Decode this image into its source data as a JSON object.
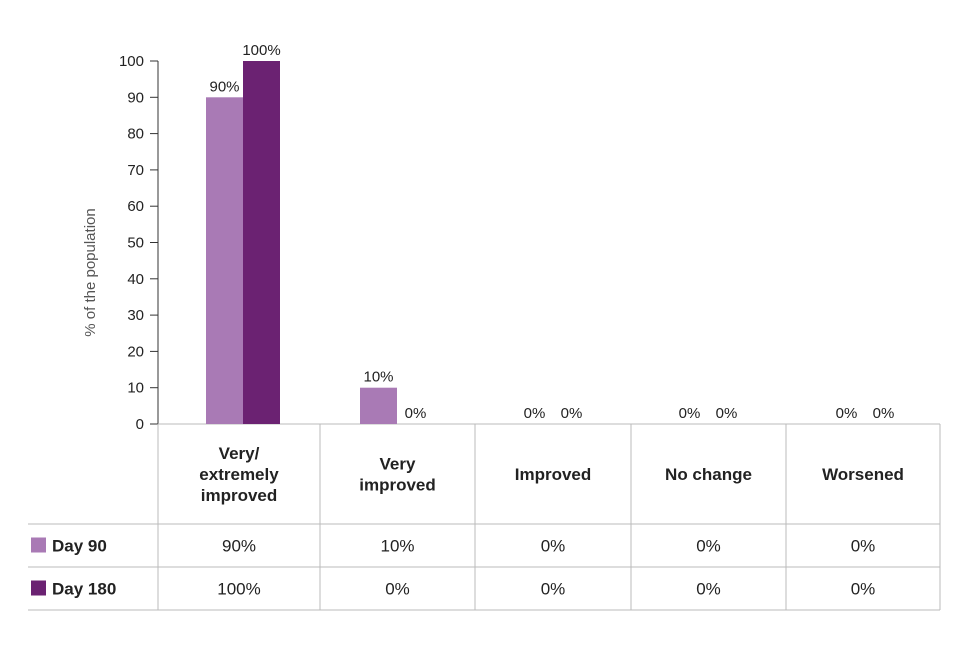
{
  "chart_data": {
    "type": "bar",
    "ylabel": "% of the population",
    "ylim": [
      0,
      100
    ],
    "yticks": [
      0,
      10,
      20,
      30,
      40,
      50,
      60,
      70,
      80,
      90,
      100
    ],
    "categories": [
      [
        "Very/",
        "extremely",
        "improved"
      ],
      [
        "Very",
        "improved"
      ],
      [
        "Improved"
      ],
      [
        "No change"
      ],
      [
        "Worsened"
      ]
    ],
    "series": [
      {
        "name": "Day 90",
        "color": "#a97ab5",
        "values": [
          90,
          10,
          0,
          0,
          0
        ],
        "labels": [
          "90%",
          "10%",
          "0%",
          "0%",
          "0%"
        ]
      },
      {
        "name": "Day 180",
        "color": "#6b2272",
        "values": [
          100,
          0,
          0,
          0,
          0
        ],
        "labels": [
          "100%",
          "0%",
          "0%",
          "0%",
          "0%"
        ]
      }
    ],
    "legend_placement": "table-rows",
    "grid": false
  }
}
